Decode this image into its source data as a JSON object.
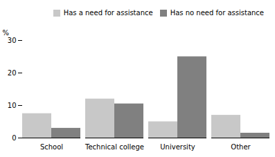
{
  "chart_data": {
    "type": "bar",
    "categories": [
      "School",
      "Technical college",
      "University",
      "Other"
    ],
    "series": [
      {
        "name": "Has a need for assistance",
        "color": "#c8c8c8",
        "values": [
          7.5,
          12.0,
          5.0,
          7.0
        ]
      },
      {
        "name": "Has no need for assistance",
        "color": "#808080",
        "values": [
          3.0,
          10.5,
          25.0,
          1.5
        ]
      }
    ],
    "ylabel": "%",
    "ylim": [
      0,
      30
    ],
    "yticks": [
      0,
      10,
      20,
      30
    ],
    "grid": false,
    "legend": "upper right"
  }
}
